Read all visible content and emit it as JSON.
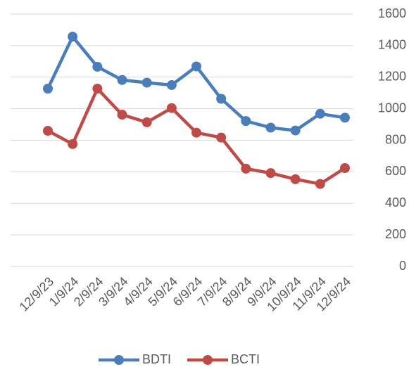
{
  "chart_data": {
    "type": "line",
    "categories": [
      "12/9/23",
      "1/9/24",
      "2/9/24",
      "3/9/24",
      "4/9/24",
      "5/9/24",
      "6/9/24",
      "7/9/24",
      "8/9/24",
      "9/9/24",
      "10/9/24",
      "11/9/24",
      "12/9/24"
    ],
    "series": [
      {
        "name": "BDTI",
        "color": "#4a7ebb",
        "values": [
          1127,
          1457,
          1266,
          1182,
          1165,
          1150,
          1268,
          1063,
          922,
          880,
          862,
          968,
          943
        ]
      },
      {
        "name": "BCTI",
        "color": "#be4b48",
        "values": [
          860,
          776,
          1127,
          962,
          914,
          1004,
          848,
          817,
          620,
          592,
          553,
          523,
          624
        ]
      }
    ],
    "ylim": [
      0,
      1600
    ],
    "yticks": [
      0,
      200,
      400,
      600,
      800,
      1000,
      1200,
      1400,
      1600
    ],
    "grid": true,
    "legend": "bottom"
  }
}
